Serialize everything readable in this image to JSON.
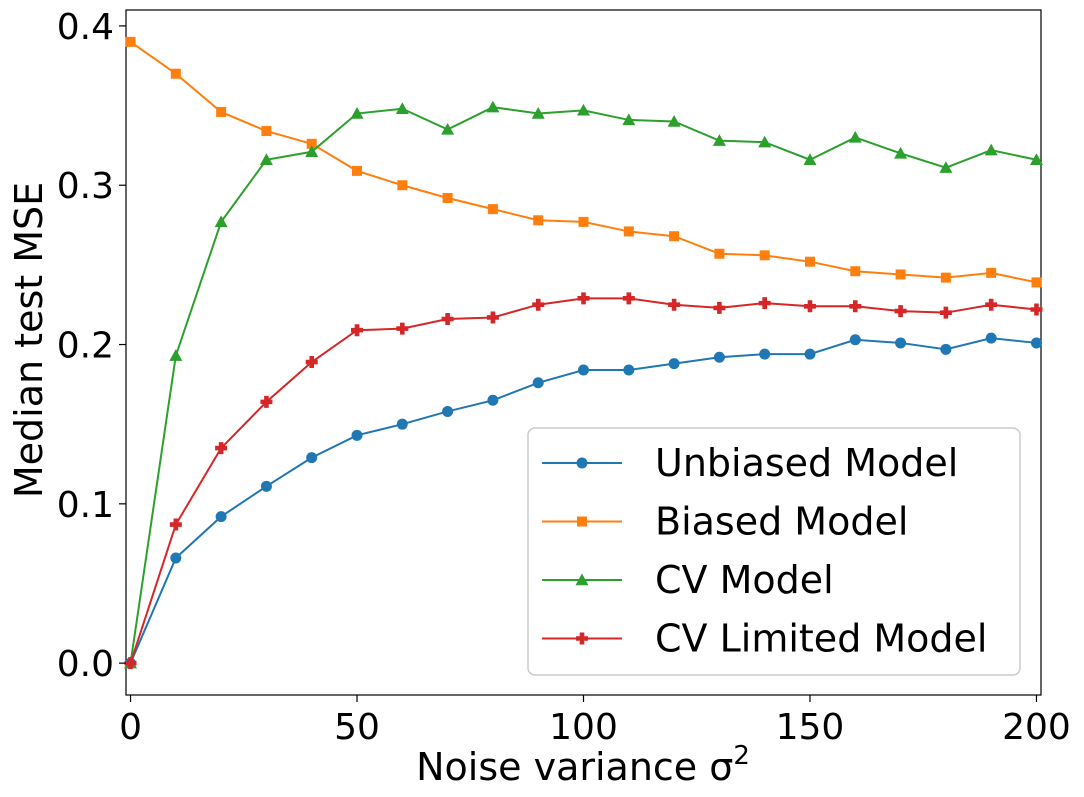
{
  "chart_data": {
    "type": "line",
    "title": "",
    "xlabel": "Noise variance σ",
    "xlabel_superscript": "2",
    "ylabel": "Median test MSE",
    "xlim": [
      -1,
      201
    ],
    "ylim": [
      -0.02,
      0.41
    ],
    "xticks": [
      0,
      50,
      100,
      150,
      200
    ],
    "xtick_labels": [
      "0",
      "50",
      "100",
      "150",
      "200"
    ],
    "yticks": [
      0.0,
      0.1,
      0.2,
      0.3,
      0.4
    ],
    "ytick_labels": [
      "0.0",
      "0.1",
      "0.2",
      "0.3",
      "0.4"
    ],
    "grid": false,
    "legend_position": "lower-right",
    "x": [
      0,
      10,
      20,
      30,
      40,
      50,
      60,
      70,
      80,
      90,
      100,
      110,
      120,
      130,
      140,
      150,
      160,
      170,
      180,
      190,
      200
    ],
    "series": [
      {
        "name": "Unbiased Model",
        "color": "#1f77b4",
        "marker": "circle",
        "values": [
          0.0,
          0.066,
          0.092,
          0.111,
          0.129,
          0.143,
          0.15,
          0.158,
          0.165,
          0.176,
          0.184,
          0.184,
          0.188,
          0.192,
          0.194,
          0.194,
          0.203,
          0.201,
          0.197,
          0.204,
          0.201
        ]
      },
      {
        "name": "Biased Model",
        "color": "#ff7f0e",
        "marker": "square",
        "values": [
          0.39,
          0.37,
          0.346,
          0.334,
          0.326,
          0.309,
          0.3,
          0.292,
          0.285,
          0.278,
          0.277,
          0.271,
          0.268,
          0.257,
          0.256,
          0.252,
          0.246,
          0.244,
          0.242,
          0.245,
          0.239
        ]
      },
      {
        "name": "CV Model",
        "color": "#2ca02c",
        "marker": "triangle",
        "values": [
          0.0,
          0.193,
          0.277,
          0.316,
          0.321,
          0.345,
          0.348,
          0.335,
          0.349,
          0.345,
          0.347,
          0.341,
          0.34,
          0.328,
          0.327,
          0.316,
          0.33,
          0.32,
          0.311,
          0.322,
          0.316
        ]
      },
      {
        "name": "CV Limited Model",
        "color": "#d62728",
        "marker": "plus",
        "values": [
          0.0,
          0.087,
          0.135,
          0.164,
          0.189,
          0.209,
          0.21,
          0.216,
          0.217,
          0.225,
          0.229,
          0.229,
          0.225,
          0.223,
          0.226,
          0.224,
          0.224,
          0.221,
          0.22,
          0.225,
          0.222
        ]
      }
    ]
  }
}
